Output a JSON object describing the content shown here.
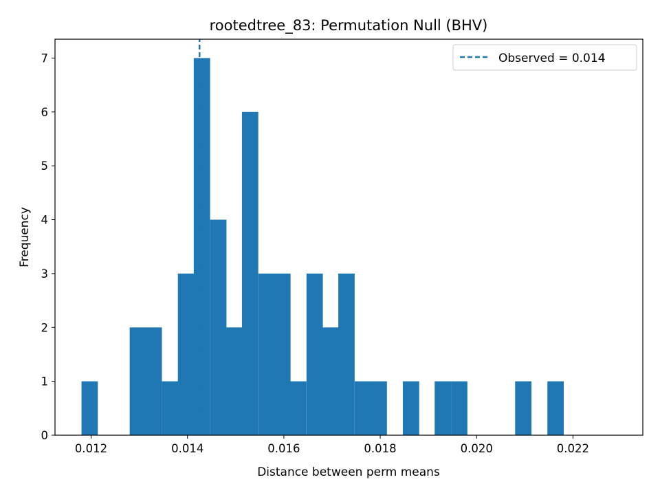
{
  "chart_data": {
    "type": "bar",
    "title": "rootedtree_83: Permutation Null (BHV)",
    "xlabel": "Distance between perm means",
    "ylabel": "Frequency",
    "xlim": [
      0.01125,
      0.02345
    ],
    "ylim": [
      0,
      7.35
    ],
    "bin_width": 0.0003333,
    "bins": [
      {
        "x0": 0.0118,
        "count": 1
      },
      {
        "x0": 0.01213,
        "count": 0
      },
      {
        "x0": 0.01247,
        "count": 0
      },
      {
        "x0": 0.0128,
        "count": 2
      },
      {
        "x0": 0.01313,
        "count": 2
      },
      {
        "x0": 0.01347,
        "count": 1
      },
      {
        "x0": 0.0138,
        "count": 3
      },
      {
        "x0": 0.01413,
        "count": 7
      },
      {
        "x0": 0.01447,
        "count": 4
      },
      {
        "x0": 0.0148,
        "count": 2
      },
      {
        "x0": 0.01513,
        "count": 6
      },
      {
        "x0": 0.01547,
        "count": 3
      },
      {
        "x0": 0.0158,
        "count": 3
      },
      {
        "x0": 0.01613,
        "count": 1
      },
      {
        "x0": 0.01647,
        "count": 3
      },
      {
        "x0": 0.0168,
        "count": 2
      },
      {
        "x0": 0.01713,
        "count": 3
      },
      {
        "x0": 0.01747,
        "count": 1
      },
      {
        "x0": 0.0178,
        "count": 1
      },
      {
        "x0": 0.01813,
        "count": 0
      },
      {
        "x0": 0.01847,
        "count": 1
      },
      {
        "x0": 0.0188,
        "count": 0
      },
      {
        "x0": 0.01913,
        "count": 1
      },
      {
        "x0": 0.01947,
        "count": 1
      },
      {
        "x0": 0.0198,
        "count": 0
      },
      {
        "x0": 0.02013,
        "count": 0
      },
      {
        "x0": 0.02047,
        "count": 0
      },
      {
        "x0": 0.0208,
        "count": 1
      },
      {
        "x0": 0.02113,
        "count": 0
      },
      {
        "x0": 0.02147,
        "count": 1
      }
    ],
    "x_ticks": [
      {
        "value": 0.012,
        "label": "0.012"
      },
      {
        "value": 0.014,
        "label": "0.014"
      },
      {
        "value": 0.016,
        "label": "0.016"
      },
      {
        "value": 0.018,
        "label": "0.018"
      },
      {
        "value": 0.02,
        "label": "0.020"
      },
      {
        "value": 0.022,
        "label": "0.022"
      }
    ],
    "y_ticks": [
      {
        "value": 0,
        "label": "0"
      },
      {
        "value": 1,
        "label": "1"
      },
      {
        "value": 2,
        "label": "2"
      },
      {
        "value": 3,
        "label": "3"
      },
      {
        "value": 4,
        "label": "4"
      },
      {
        "value": 5,
        "label": "5"
      },
      {
        "value": 6,
        "label": "6"
      },
      {
        "value": 7,
        "label": "7"
      }
    ],
    "observed": {
      "value": 0.01425,
      "label": "Observed = 0.014",
      "style": "dashed"
    },
    "legend": {
      "position": "top-right",
      "entries": [
        "Observed = 0.014"
      ]
    },
    "grid": false,
    "colors": {
      "bar": "#1f77b4",
      "observed_line": "#1f77b4",
      "axes": "#000000"
    }
  }
}
